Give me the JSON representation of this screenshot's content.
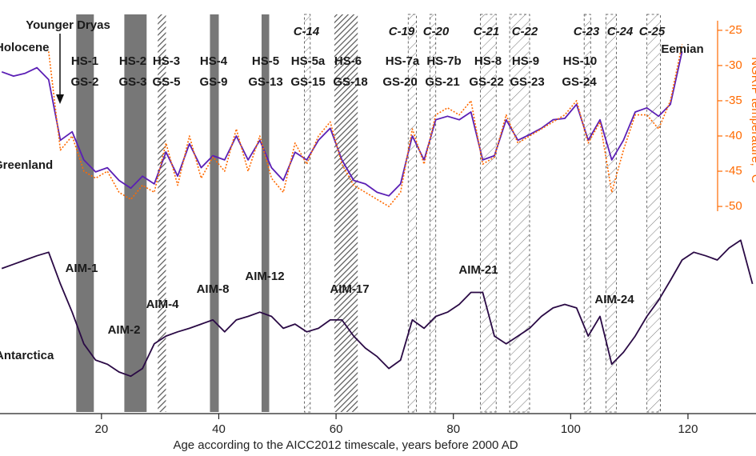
{
  "chart_data": {
    "type": "line",
    "x_label": "Age according to the AICC2012 timescale, years before 2000 AD",
    "y_label": "NGRIP temperature, °C",
    "y_axis_side": "right",
    "y_axis_color": "#ff6a00",
    "xlim": [
      2.7,
      131.6
    ],
    "xticks": [
      20,
      40,
      60,
      80,
      100,
      120
    ],
    "ylim": [
      -79.4,
      -20.7
    ],
    "yticks": [
      -25,
      -30,
      -35,
      -40,
      -45,
      -50
    ],
    "x": [
      3,
      5,
      7,
      9,
      11,
      13,
      15,
      17,
      19,
      21,
      23,
      25,
      27,
      29,
      31,
      33,
      35,
      37,
      39,
      41,
      43,
      45,
      47,
      49,
      51,
      53,
      55,
      57,
      59,
      61,
      63,
      65,
      67,
      69,
      71,
      73,
      75,
      77,
      79,
      81,
      83,
      85,
      87,
      89,
      91,
      93,
      95,
      97,
      99,
      101,
      103,
      105,
      107,
      109,
      111,
      113,
      115,
      117,
      119,
      121,
      123,
      125,
      127,
      129,
      131
    ],
    "series": [
      {
        "name": "Greenland",
        "color": "#5b1fb5",
        "dash": false,
        "values": [
          -30.9,
          -31.5,
          -31.1,
          -30.3,
          -32.0,
          -40.6,
          -39.4,
          -43.4,
          -45.1,
          -44.5,
          -46.3,
          -47.4,
          -45.7,
          -46.8,
          -42.3,
          -45.7,
          -41.1,
          -44.5,
          -42.8,
          -43.4,
          -40.0,
          -43.4,
          -40.6,
          -44.5,
          -46.3,
          -42.3,
          -43.4,
          -40.6,
          -38.9,
          -43.4,
          -46.3,
          -46.8,
          -48.0,
          -48.5,
          -46.8,
          -40.0,
          -43.4,
          -37.7,
          -37.2,
          -37.7,
          -36.6,
          -43.4,
          -42.8,
          -37.7,
          -40.6,
          -39.8,
          -38.9,
          -37.7,
          -37.5,
          -35.5,
          -40.6,
          -37.7,
          -43.4,
          -40.6,
          -36.6,
          -36.0,
          -37.2,
          -35.5,
          -28.0,
          null,
          null,
          null,
          null,
          null,
          null
        ]
      },
      {
        "name": "NGRIP temperature",
        "color": "#ff6a00",
        "dash": true,
        "values": [
          null,
          null,
          null,
          null,
          -28,
          -42,
          -40,
          -45,
          -46,
          -45,
          -48,
          -49,
          -47,
          -48,
          -41,
          -47,
          -40,
          -46,
          -43,
          -45,
          -39,
          -45,
          -40,
          -46,
          -48,
          -41,
          -44,
          -40,
          -38,
          -44,
          -47,
          -48,
          -49,
          -50,
          -48,
          -39,
          -44,
          -37,
          -36,
          -37,
          -35,
          -44,
          -43,
          -37,
          -41,
          -40,
          -39,
          -38,
          -37,
          -35,
          -41,
          -38,
          -48,
          -42,
          -37,
          -37,
          -39,
          -35,
          -27,
          null,
          null,
          null,
          null,
          null,
          null
        ]
      },
      {
        "name": "Antarctica",
        "color": "#2a0a45",
        "dash": false,
        "values": [
          -58.8,
          -58.2,
          -57.6,
          -57.0,
          -56.5,
          -61.0,
          -65.0,
          -69.5,
          -71.8,
          -72.4,
          -73.5,
          -74.1,
          -73.0,
          -69.5,
          -68.4,
          -67.8,
          -67.3,
          -66.7,
          -66.1,
          -67.8,
          -66.1,
          -65.6,
          -65.0,
          -65.6,
          -67.3,
          -66.7,
          -67.8,
          -67.3,
          -66.1,
          -66.1,
          -68.4,
          -70.1,
          -71.3,
          -73.0,
          -71.8,
          -66.1,
          -67.3,
          -65.6,
          -65.0,
          -63.9,
          -62.2,
          -62.2,
          -68.4,
          -69.5,
          -68.4,
          -67.3,
          -65.6,
          -64.4,
          -63.9,
          -64.4,
          -68.4,
          -65.6,
          -72.4,
          -70.7,
          -68.4,
          -65.6,
          -63.3,
          -60.5,
          -57.6,
          -56.5,
          -57.0,
          -57.6,
          -55.9,
          -54.8,
          -61.0
        ]
      }
    ],
    "heinrich_bands": [
      [
        15.7,
        18.7
      ],
      [
        23.9,
        27.7
      ],
      [
        38.5,
        40.0
      ],
      [
        47.3,
        48.6
      ]
    ],
    "dense_hatched_bands": [
      [
        29.6,
        31.0
      ],
      [
        59.7,
        63.7
      ]
    ],
    "light_hatched_bands": [
      [
        54.6,
        55.6
      ],
      [
        72.3,
        73.7
      ],
      [
        76.0,
        77.0
      ],
      [
        84.6,
        87.3
      ],
      [
        89.6,
        93.0
      ],
      [
        102.3,
        103.4
      ],
      [
        106.0,
        107.8
      ],
      [
        113.0,
        115.3
      ]
    ],
    "annotations": [
      "Younger Dryas",
      "Holocene",
      "Eemian",
      "Greenland",
      "Antarctica",
      "HS-1",
      "HS-2",
      "HS-3",
      "HS-4",
      "HS-5",
      "HS-5a",
      "HS-6",
      "HS-7a",
      "HS-7b",
      "HS-8",
      "HS-9",
      "HS-10",
      "GS-2",
      "GS-3",
      "GS-5",
      "GS-9",
      "GS-13",
      "GS-15",
      "GS-18",
      "GS-20",
      "GS-21",
      "GS-22",
      "GS-23",
      "GS-24",
      "C-14",
      "C-19",
      "C-20",
      "C-21",
      "C-22",
      "C-23",
      "C-24",
      "C-25",
      "AIM-1",
      "AIM-2",
      "AIM-4",
      "AIM-8",
      "AIM-12",
      "AIM-17",
      "AIM-21",
      "AIM-24"
    ]
  }
}
